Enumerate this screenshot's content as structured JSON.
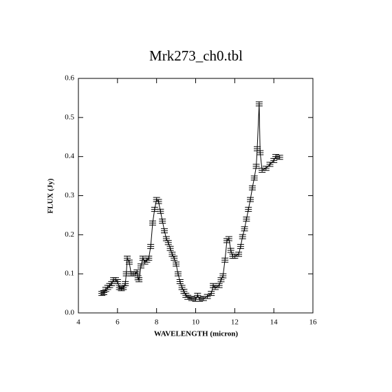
{
  "chart_data": {
    "type": "line",
    "title": "Mrk273_ch0.tbl",
    "x_label": "WAVELENGTH (micron)",
    "y_label": "FLUX (Jy)",
    "x": [
      5.2,
      5.3,
      5.4,
      5.5,
      5.6,
      5.7,
      5.8,
      5.9,
      6.0,
      6.1,
      6.2,
      6.3,
      6.4,
      6.45,
      6.5,
      6.6,
      6.7,
      6.8,
      6.9,
      7.0,
      7.05,
      7.1,
      7.2,
      7.3,
      7.4,
      7.5,
      7.6,
      7.7,
      7.8,
      7.9,
      8.0,
      8.1,
      8.2,
      8.3,
      8.4,
      8.5,
      8.6,
      8.7,
      8.8,
      8.9,
      9.0,
      9.1,
      9.2,
      9.3,
      9.4,
      9.5,
      9.6,
      9.8,
      10.0,
      10.1,
      10.2,
      10.4,
      10.6,
      10.8,
      10.9,
      11.0,
      11.2,
      11.3,
      11.4,
      11.5,
      11.6,
      11.7,
      11.8,
      11.9,
      12.0,
      12.2,
      12.3,
      12.4,
      12.5,
      12.6,
      12.7,
      12.8,
      12.9,
      13.0,
      13.1,
      13.15,
      13.25,
      13.3,
      13.4,
      13.6,
      13.8,
      14.0,
      14.1,
      14.3
    ],
    "series": [
      {
        "name": "FLUX",
        "color": "#000000",
        "values": [
          0.05,
          0.052,
          0.06,
          0.065,
          0.07,
          0.075,
          0.085,
          0.085,
          0.08,
          0.065,
          0.062,
          0.065,
          0.075,
          0.1,
          0.14,
          0.13,
          0.1,
          0.1,
          0.1,
          0.105,
          0.09,
          0.085,
          0.12,
          0.14,
          0.13,
          0.135,
          0.14,
          0.17,
          0.23,
          0.265,
          0.29,
          0.285,
          0.26,
          0.235,
          0.21,
          0.19,
          0.18,
          0.165,
          0.15,
          0.14,
          0.125,
          0.1,
          0.08,
          0.065,
          0.055,
          0.045,
          0.04,
          0.037,
          0.035,
          0.045,
          0.035,
          0.037,
          0.042,
          0.05,
          0.07,
          0.065,
          0.07,
          0.085,
          0.095,
          0.135,
          0.185,
          0.19,
          0.16,
          0.145,
          0.145,
          0.15,
          0.17,
          0.195,
          0.215,
          0.24,
          0.265,
          0.29,
          0.32,
          0.345,
          0.375,
          0.42,
          0.535,
          0.41,
          0.365,
          0.37,
          0.38,
          0.39,
          0.4,
          0.398
        ]
      }
    ],
    "xlim": [
      4,
      16
    ],
    "xticks": [
      4,
      6,
      8,
      10,
      12,
      14,
      16
    ],
    "ylim": [
      0,
      0.6
    ],
    "yticks": [
      {
        "value": 0,
        "label": "0.0"
      },
      0.1,
      0.2,
      0.3,
      0.4,
      0.5,
      0.6
    ]
  }
}
